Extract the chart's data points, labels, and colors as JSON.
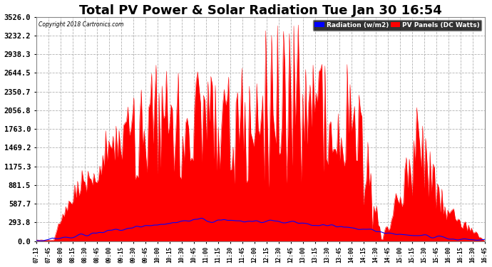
{
  "title": "Total PV Power & Solar Radiation Tue Jan 30 16:54",
  "copyright": "Copyright 2018 Cartronics.com",
  "legend_radiation": "Radiation (w/m2)",
  "legend_pv": "PV Panels (DC Watts)",
  "ymax": 3526.0,
  "yticks": [
    0.0,
    293.8,
    587.7,
    881.5,
    1175.3,
    1469.2,
    1763.0,
    2056.8,
    2350.7,
    2644.5,
    2938.3,
    3232.2,
    3526.0
  ],
  "background_color": "#ffffff",
  "plot_bg_color": "#ffffff",
  "grid_color": "#aaaaaa",
  "pv_color": "#ff0000",
  "radiation_color": "#0000ff",
  "title_fontsize": 13,
  "label_fontsize": 7.5,
  "time_labels": [
    "07:13",
    "07:45",
    "08:00",
    "08:15",
    "08:30",
    "08:45",
    "09:00",
    "09:15",
    "09:30",
    "09:45",
    "10:00",
    "10:15",
    "10:30",
    "10:45",
    "11:00",
    "11:15",
    "11:30",
    "11:45",
    "12:00",
    "12:15",
    "12:30",
    "12:45",
    "13:00",
    "13:15",
    "13:30",
    "13:45",
    "14:00",
    "14:15",
    "14:30",
    "14:45",
    "15:00",
    "15:15",
    "15:30",
    "15:45",
    "16:00",
    "16:15",
    "16:30",
    "16:45"
  ]
}
